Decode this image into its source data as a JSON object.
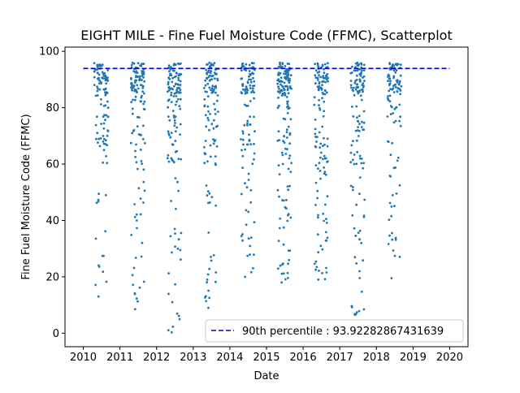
{
  "chart_data": {
    "type": "scatter",
    "title": "EIGHT MILE - Fine Fuel Moisture Code (FFMC), Scatterplot",
    "xlabel": "Date",
    "ylabel": "Fine Fuel Moisture Code (FFMC)",
    "xlim": [
      2009.5,
      2020.5
    ],
    "ylim": [
      -4.8,
      101.5
    ],
    "xticks": [
      "2010",
      "2011",
      "2012",
      "2013",
      "2014",
      "2015",
      "2016",
      "2017",
      "2018",
      "2019",
      "2020"
    ],
    "yticks": [
      "0",
      "20",
      "40",
      "60",
      "80",
      "100"
    ],
    "grid": false,
    "legend_position": "bottom-right",
    "threshold": {
      "name": "90th percentile : 93.92282867431639",
      "value": 93.92282867431639,
      "x": [
        2010,
        2020
      ],
      "color": "#0000cc",
      "style": "dashed"
    },
    "series": [
      {
        "color": "#1f77b4",
        "seasons": [
          {
            "year": 2010,
            "start": 2010.3,
            "end": 2010.68,
            "min": 13,
            "n": 110
          },
          {
            "year": 2011,
            "start": 2011.3,
            "end": 2011.68,
            "min": 8.5,
            "n": 130
          },
          {
            "year": 2012,
            "start": 2012.3,
            "end": 2012.68,
            "min": 0.3,
            "n": 135
          },
          {
            "year": 2013,
            "start": 2013.3,
            "end": 2013.68,
            "min": 9,
            "n": 120
          },
          {
            "year": 2014,
            "start": 2014.3,
            "end": 2014.68,
            "min": 20,
            "n": 115
          },
          {
            "year": 2015,
            "start": 2015.3,
            "end": 2015.68,
            "min": 18,
            "n": 160
          },
          {
            "year": 2016,
            "start": 2016.3,
            "end": 2016.68,
            "min": 19,
            "n": 130
          },
          {
            "year": 2017,
            "start": 2017.3,
            "end": 2017.68,
            "min": 6.5,
            "n": 125
          },
          {
            "year": 2018,
            "start": 2018.3,
            "end": 2018.68,
            "min": 19.5,
            "n": 105
          }
        ]
      }
    ]
  }
}
